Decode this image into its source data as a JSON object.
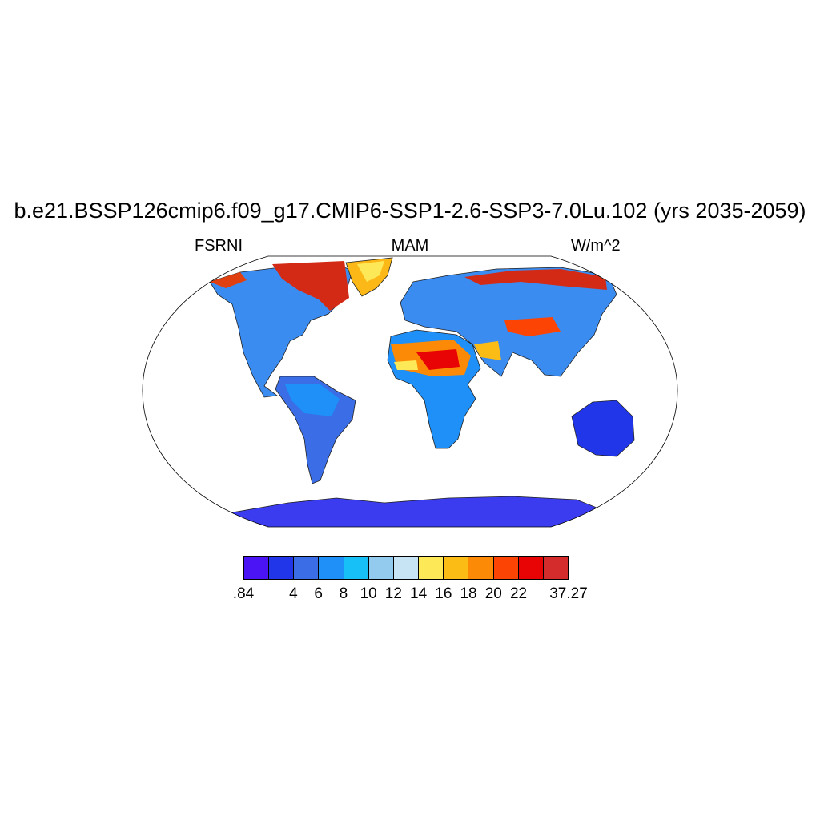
{
  "title": "b.e21.BSSP126cmip6.f09_g17.CMIP6-SSP1-2.6-SSP3-7.0Lu.102 (yrs 2035-2059)",
  "left_label": "FSRNI",
  "center_label": "MAM",
  "right_label": "W/m^2",
  "colorbar": {
    "colors": [
      "#4a14f5",
      "#2136e8",
      "#3b6de6",
      "#1e90f7",
      "#18c0f8",
      "#92cbee",
      "#c6e4f4",
      "#fde858",
      "#fcbc16",
      "#fc8a06",
      "#fc4404",
      "#e80404",
      "#d42c2c"
    ],
    "labels": [
      ".84",
      "4",
      "6",
      "8",
      "10",
      "12",
      "14",
      "16",
      "18",
      "20",
      "22",
      "37.27"
    ]
  }
}
